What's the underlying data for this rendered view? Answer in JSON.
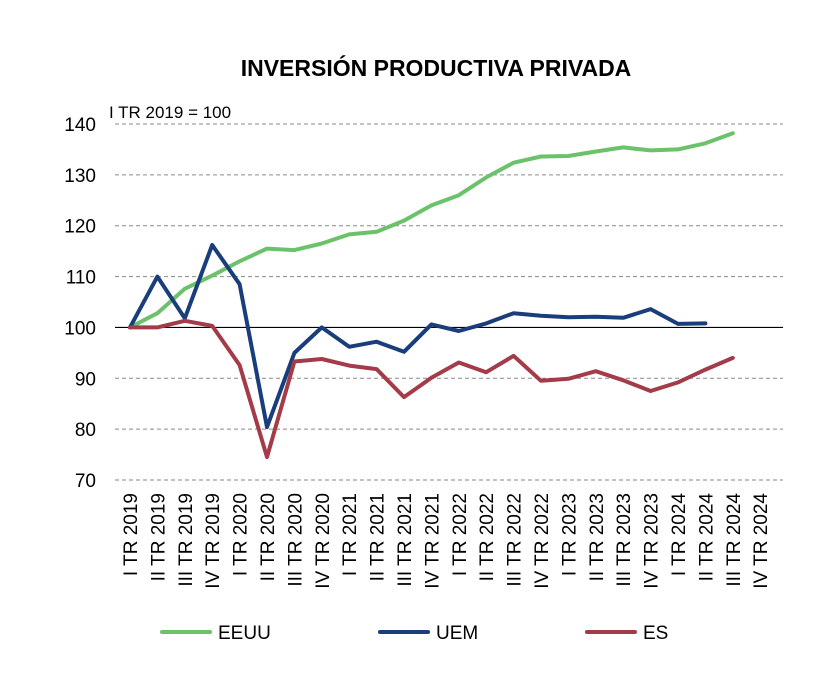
{
  "chart_data": {
    "type": "line",
    "title": "INVERSIÓN PRODUCTIVA PRIVADA",
    "annotation": "I TR 2019 = 100",
    "xlabel": "",
    "ylabel": "",
    "ylim": [
      70,
      140
    ],
    "yticks": [
      70,
      80,
      90,
      100,
      110,
      120,
      130,
      140
    ],
    "reference_line": 100,
    "grid": true,
    "legend_position": "bottom",
    "categories": [
      "I TR 2019",
      "II TR 2019",
      "III TR 2019",
      "IV TR 2019",
      "I TR 2020",
      "II TR 2020",
      "III TR 2020",
      "IV TR 2020",
      "I TR 2021",
      "II TR 2021",
      "III TR 2021",
      "IV TR 2021",
      "I TR 2022",
      "II TR 2022",
      "III TR 2022",
      "IV TR 2022",
      "I TR 2023",
      "II TR 2023",
      "III TR 2023",
      "IV TR 2023",
      "I TR 2024",
      "II TR 2024",
      "III TR 2024",
      "IV TR 2024"
    ],
    "series": [
      {
        "name": "EEUU",
        "color": "#6cc26a",
        "values": [
          100,
          102.8,
          107.6,
          110.2,
          113.0,
          115.5,
          115.2,
          116.5,
          118.3,
          118.8,
          121.0,
          124.0,
          126.0,
          129.5,
          132.4,
          133.6,
          133.7,
          134.6,
          135.4,
          134.8,
          135.0,
          136.2,
          138.2,
          null
        ]
      },
      {
        "name": "UEM",
        "color": "#1a3d7c",
        "values": [
          100,
          110.0,
          101.8,
          116.2,
          108.5,
          80.4,
          95.0,
          100.0,
          96.2,
          97.2,
          95.2,
          100.6,
          99.3,
          100.8,
          102.8,
          102.3,
          102.0,
          102.1,
          101.9,
          103.6,
          100.7,
          100.8,
          null,
          null
        ]
      },
      {
        "name": "ES",
        "color": "#a33b48",
        "values": [
          100,
          100.0,
          101.3,
          100.3,
          92.6,
          74.5,
          93.3,
          93.8,
          92.5,
          91.8,
          86.3,
          90.1,
          93.1,
          91.2,
          94.4,
          89.5,
          89.9,
          91.4,
          89.6,
          87.5,
          89.2,
          91.7,
          94.0,
          null
        ]
      }
    ]
  }
}
